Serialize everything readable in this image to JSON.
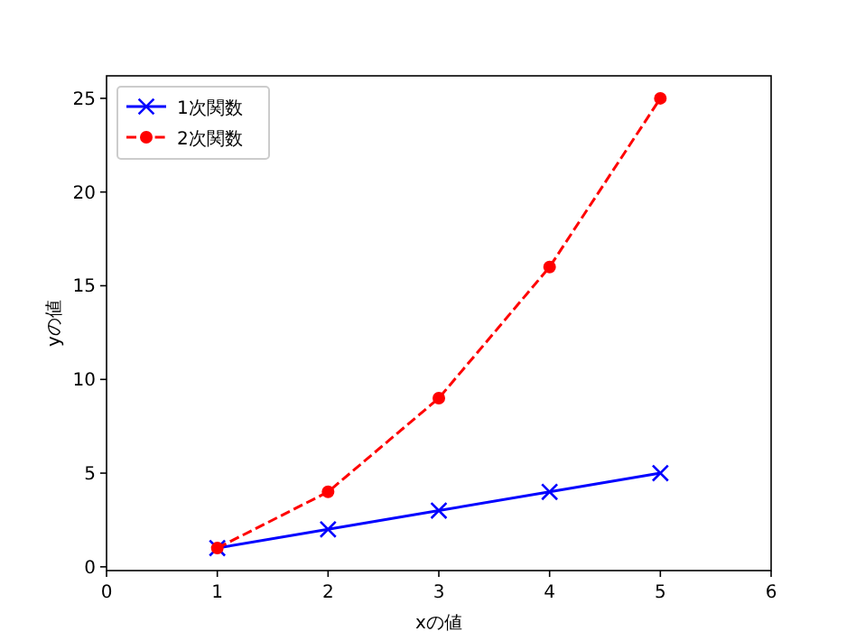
{
  "chart_data": {
    "type": "line",
    "xlabel": "xの値",
    "ylabel": "yの値",
    "x": [
      1,
      2,
      3,
      4,
      5
    ],
    "series": [
      {
        "name": "1次関数",
        "color": "#0000ff",
        "values": [
          1,
          2,
          3,
          4,
          5
        ],
        "marker": "cross",
        "line_style": "solid"
      },
      {
        "name": "2次関数",
        "color": "#ff0000",
        "values": [
          1,
          4,
          9,
          16,
          25
        ],
        "marker": "circle",
        "line_style": "dashed"
      }
    ],
    "xlim": [
      0,
      6
    ],
    "xticks": [
      0,
      1,
      2,
      3,
      4,
      5,
      6
    ],
    "ylim": [
      -0.2,
      26.2
    ],
    "yticks": [
      0,
      5,
      10,
      15,
      20,
      25
    ],
    "legend": "top left",
    "grid": false
  }
}
